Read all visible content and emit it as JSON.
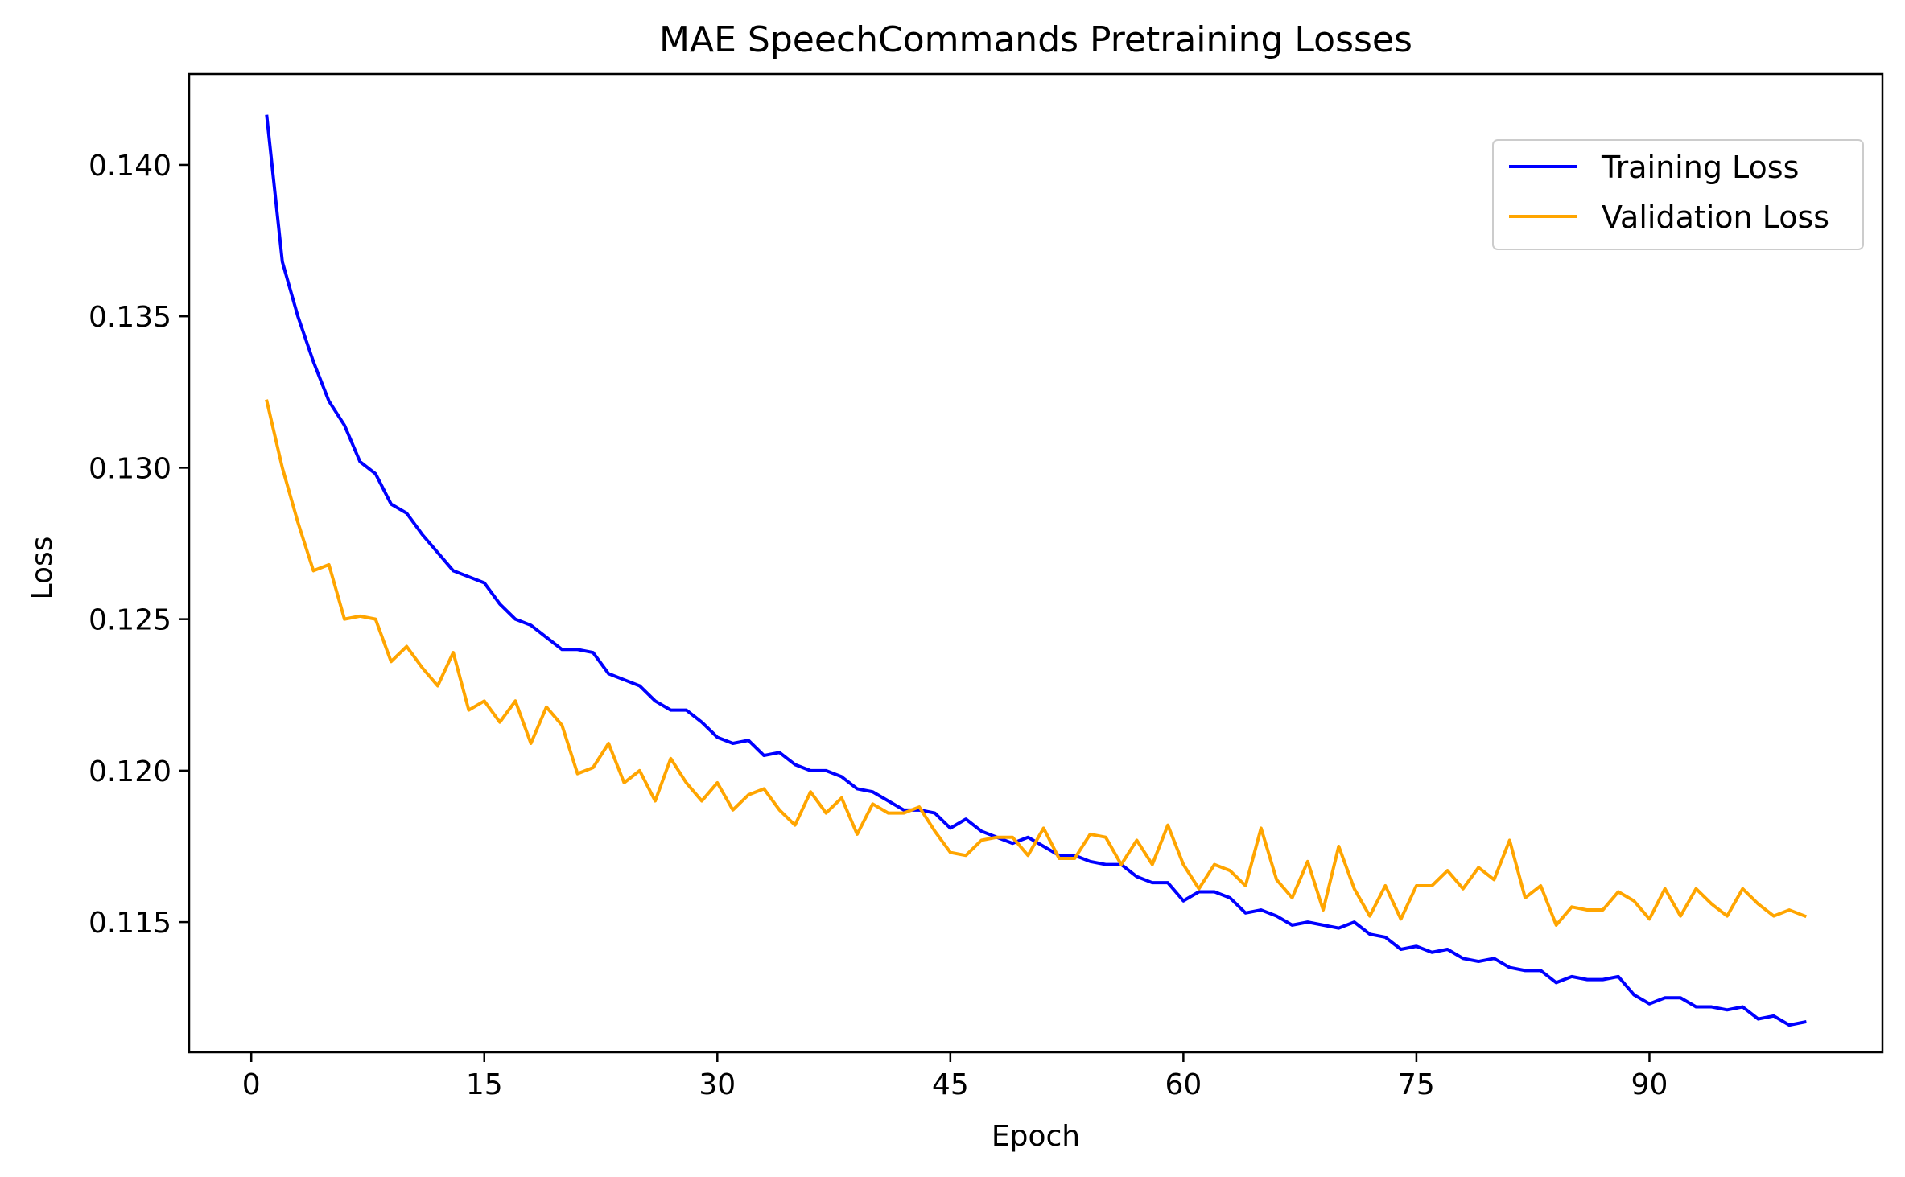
{
  "chart_data": {
    "type": "line",
    "title": "MAE SpeechCommands Pretraining Losses",
    "xlabel": "Epoch",
    "ylabel": "Loss",
    "xlim": [
      -4.0,
      105.0
    ],
    "ylim": [
      0.1107,
      0.143
    ],
    "xticks": [
      0,
      15,
      30,
      45,
      60,
      75,
      90
    ],
    "yticks": [
      0.115,
      0.12,
      0.125,
      0.13,
      0.135,
      0.14
    ],
    "ytick_labels": [
      "0.115",
      "0.120",
      "0.125",
      "0.130",
      "0.135",
      "0.140"
    ],
    "grid": false,
    "legend_position": "top-right",
    "x": [
      1,
      2,
      3,
      4,
      5,
      6,
      7,
      8,
      9,
      10,
      11,
      12,
      13,
      14,
      15,
      16,
      17,
      18,
      19,
      20,
      21,
      22,
      23,
      24,
      25,
      26,
      27,
      28,
      29,
      30,
      31,
      32,
      33,
      34,
      35,
      36,
      37,
      38,
      39,
      40,
      41,
      42,
      43,
      44,
      45,
      46,
      47,
      48,
      49,
      50,
      51,
      52,
      53,
      54,
      55,
      56,
      57,
      58,
      59,
      60,
      61,
      62,
      63,
      64,
      65,
      66,
      67,
      68,
      69,
      70,
      71,
      72,
      73,
      74,
      75,
      76,
      77,
      78,
      79,
      80,
      81,
      82,
      83,
      84,
      85,
      86,
      87,
      88,
      89,
      90,
      91,
      92,
      93,
      94,
      95,
      96,
      97,
      98,
      99,
      100
    ],
    "series": [
      {
        "name": "Training Loss",
        "color": "#0000ff",
        "values": [
          0.1416,
          0.1368,
          0.135,
          0.1335,
          0.1322,
          0.1314,
          0.1302,
          0.1298,
          0.1288,
          0.1285,
          0.1278,
          0.1272,
          0.1266,
          0.1264,
          0.1262,
          0.1255,
          0.125,
          0.1248,
          0.1244,
          0.124,
          0.124,
          0.1239,
          0.1232,
          0.123,
          0.1228,
          0.1223,
          0.122,
          0.122,
          0.1216,
          0.1211,
          0.1209,
          0.121,
          0.1205,
          0.1206,
          0.1202,
          0.12,
          0.12,
          0.1198,
          0.1194,
          0.1193,
          0.119,
          0.1187,
          0.1187,
          0.1186,
          0.1181,
          0.1184,
          0.118,
          0.1178,
          0.1176,
          0.1178,
          0.1175,
          0.1172,
          0.1172,
          0.117,
          0.1169,
          0.1169,
          0.1165,
          0.1163,
          0.1163,
          0.1157,
          0.116,
          0.116,
          0.1158,
          0.1153,
          0.1154,
          0.1152,
          0.1149,
          0.115,
          0.1149,
          0.1148,
          0.115,
          0.1146,
          0.1145,
          0.1141,
          0.1142,
          0.114,
          0.1141,
          0.1138,
          0.1137,
          0.1138,
          0.1135,
          0.1134,
          0.1134,
          0.113,
          0.1132,
          0.1131,
          0.1131,
          0.1132,
          0.1126,
          0.1123,
          0.1125,
          0.1125,
          0.1122,
          0.1122,
          0.1121,
          0.1122,
          0.1118,
          0.1119,
          0.1116,
          0.1117
        ]
      },
      {
        "name": "Validation Loss",
        "color": "#ffa500",
        "values": [
          0.1322,
          0.13,
          0.1282,
          0.1266,
          0.1268,
          0.125,
          0.1251,
          0.125,
          0.1236,
          0.1241,
          0.1234,
          0.1228,
          0.1239,
          0.122,
          0.1223,
          0.1216,
          0.1223,
          0.1209,
          0.1221,
          0.1215,
          0.1199,
          0.1201,
          0.1209,
          0.1196,
          0.12,
          0.119,
          0.1204,
          0.1196,
          0.119,
          0.1196,
          0.1187,
          0.1192,
          0.1194,
          0.1187,
          0.1182,
          0.1193,
          0.1186,
          0.1191,
          0.1179,
          0.1189,
          0.1186,
          0.1186,
          0.1188,
          0.118,
          0.1173,
          0.1172,
          0.1177,
          0.1178,
          0.1178,
          0.1172,
          0.1181,
          0.1171,
          0.1171,
          0.1179,
          0.1178,
          0.1169,
          0.1177,
          0.1169,
          0.1182,
          0.1169,
          0.1161,
          0.1169,
          0.1167,
          0.1162,
          0.1181,
          0.1164,
          0.1158,
          0.117,
          0.1154,
          0.1175,
          0.1161,
          0.1152,
          0.1162,
          0.1151,
          0.1162,
          0.1162,
          0.1167,
          0.1161,
          0.1168,
          0.1164,
          0.1177,
          0.1158,
          0.1162,
          0.1149,
          0.1155,
          0.1154,
          0.1154,
          0.116,
          0.1157,
          0.1151,
          0.1161,
          0.1152,
          0.1161,
          0.1156,
          0.1152,
          0.1161,
          0.1156,
          0.1152,
          0.1154,
          0.1152
        ]
      }
    ]
  }
}
